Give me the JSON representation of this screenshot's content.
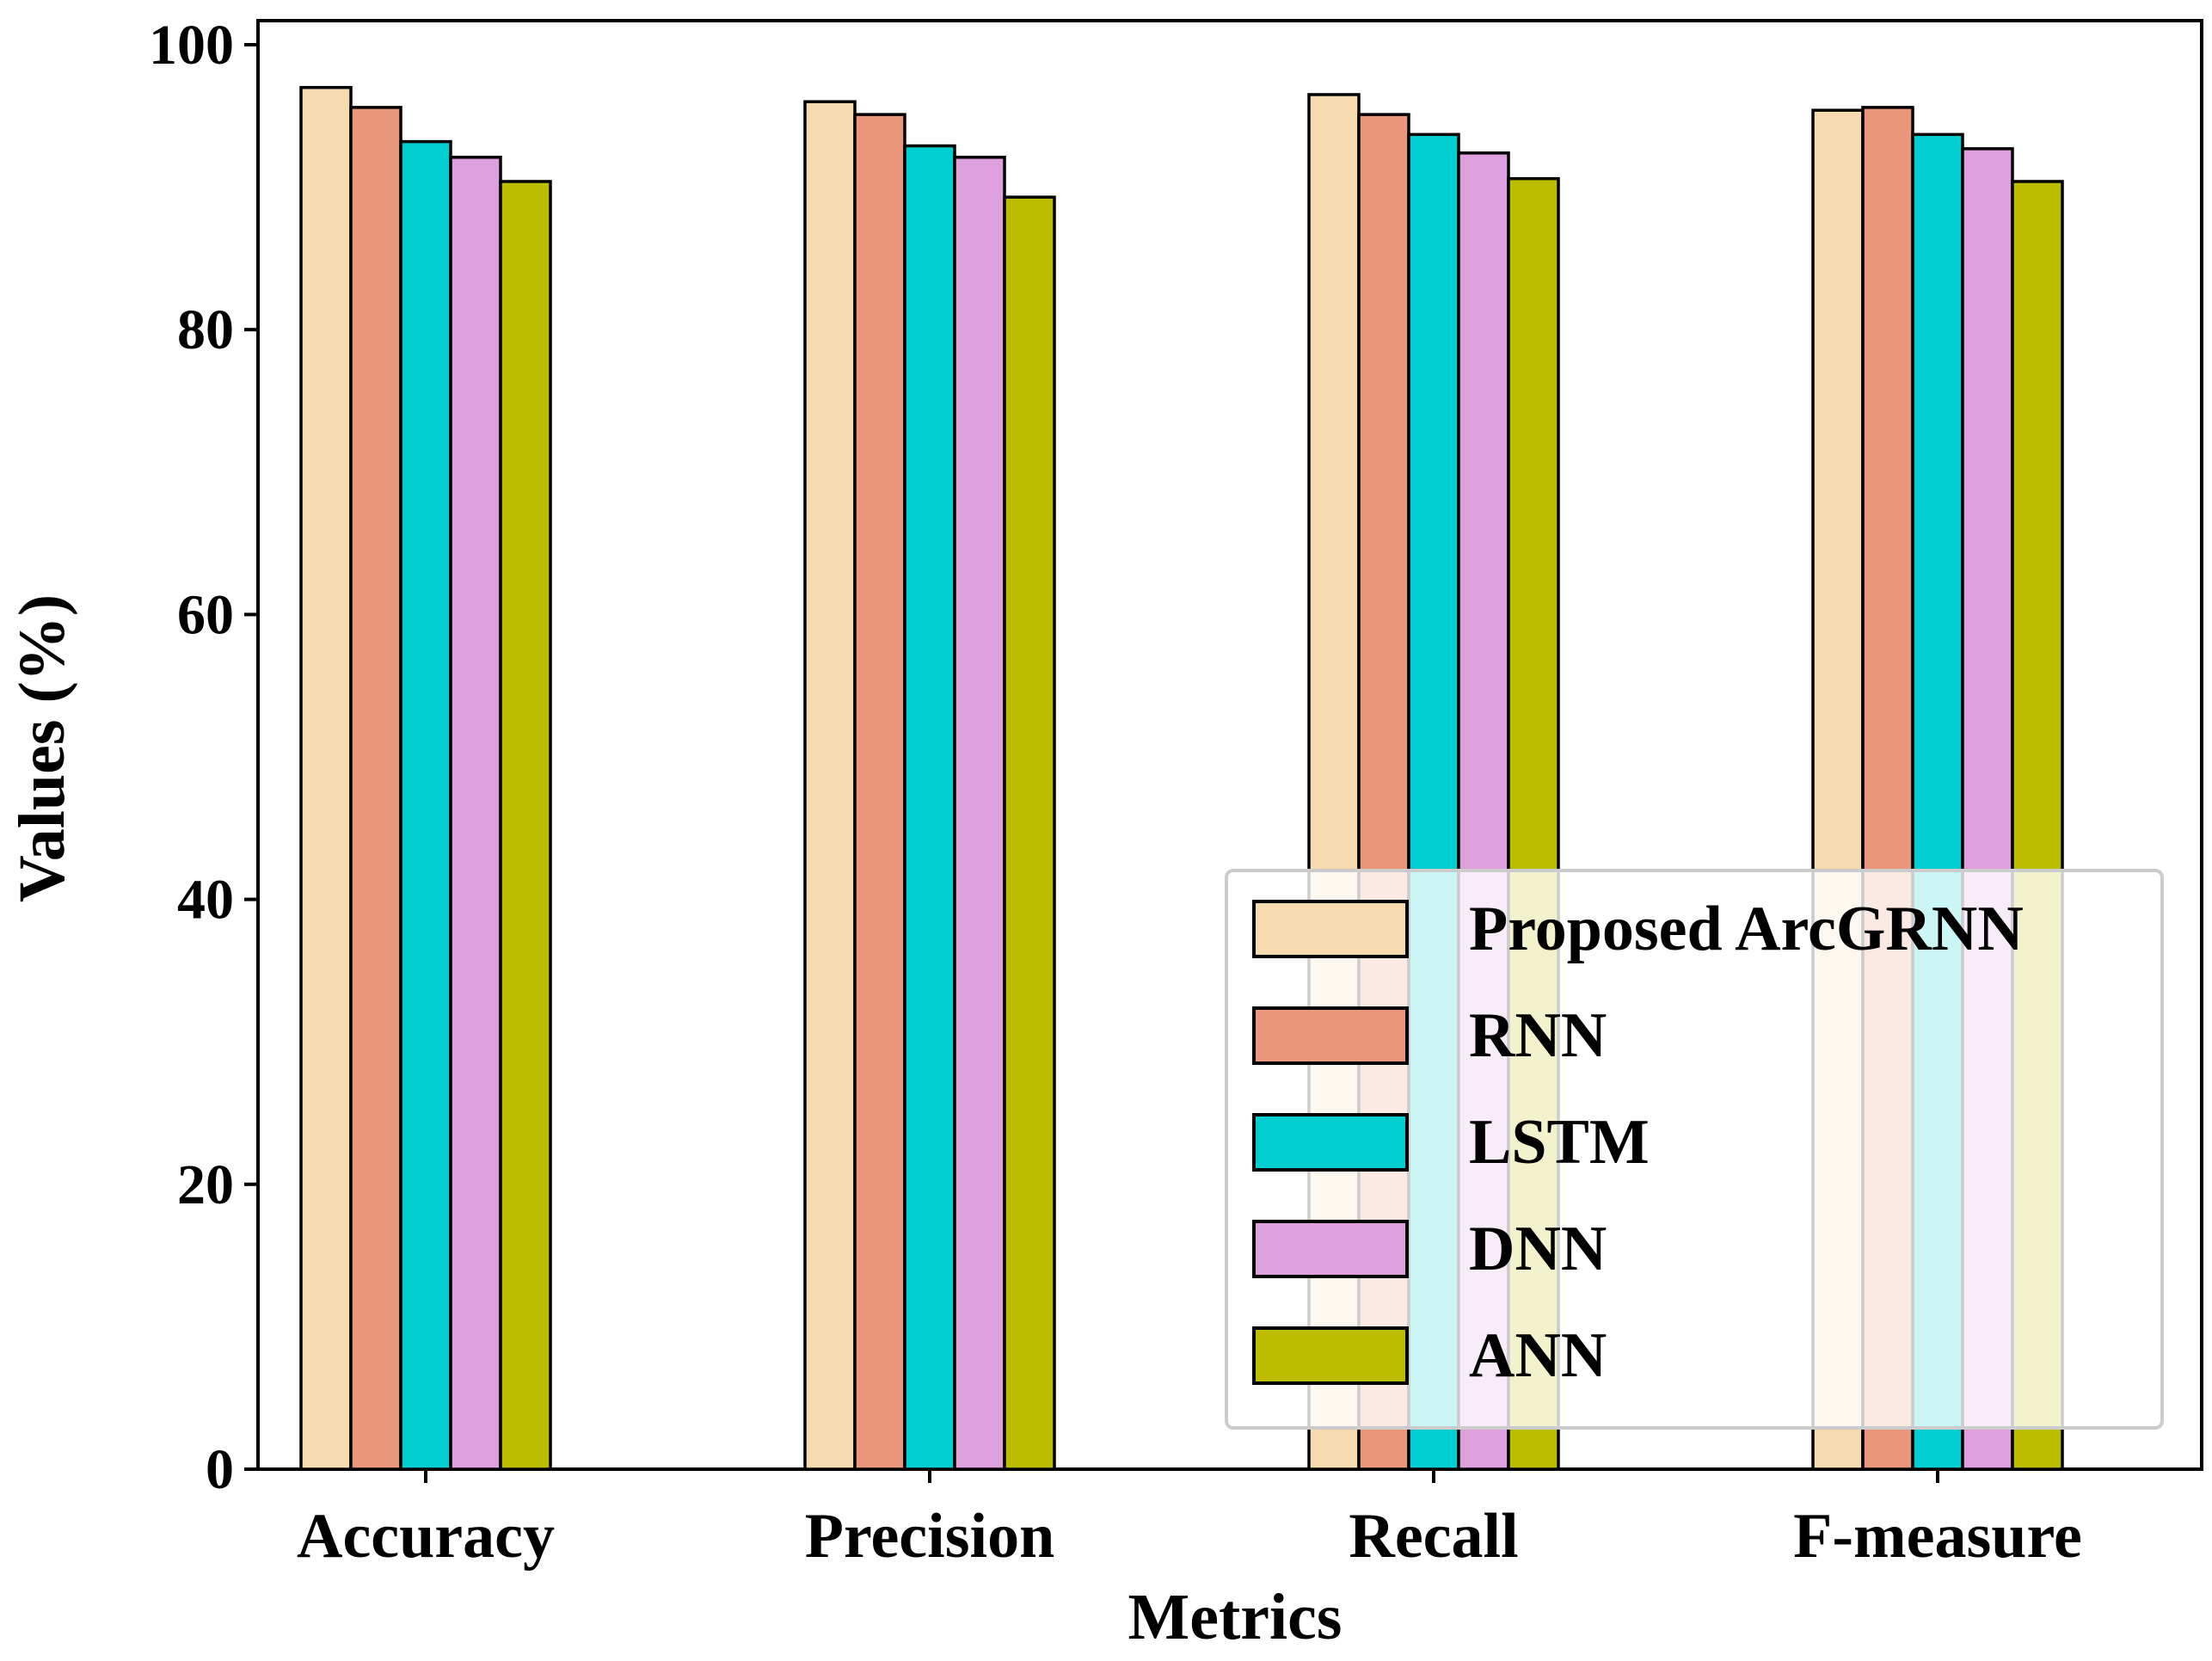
{
  "chart_data": {
    "type": "bar",
    "title": "",
    "xlabel": "Metrics",
    "ylabel": "Values (%)",
    "ylim": [
      0,
      100
    ],
    "yticks": [
      0,
      20,
      40,
      60,
      80,
      100
    ],
    "grid": false,
    "legend_position": "lower-right",
    "categories": [
      "Accuracy",
      "Precision",
      "Recall",
      "F-measure"
    ],
    "series": [
      {
        "name": "Proposed ArcGRNN",
        "color": "#f5dbad",
        "values": [
          97.0,
          96.0,
          96.5,
          95.4
        ]
      },
      {
        "name": "RNN",
        "color": "#e9967a",
        "values": [
          95.6,
          95.1,
          95.1,
          95.6
        ]
      },
      {
        "name": "LSTM",
        "color": "#00ced1",
        "values": [
          93.2,
          92.9,
          93.7,
          93.7
        ]
      },
      {
        "name": "DNN",
        "color": "#dda0dd",
        "values": [
          92.1,
          92.1,
          92.4,
          92.7
        ]
      },
      {
        "name": "ANN",
        "color": "#bdbd00",
        "values": [
          90.4,
          89.3,
          90.6,
          90.4
        ]
      }
    ]
  }
}
